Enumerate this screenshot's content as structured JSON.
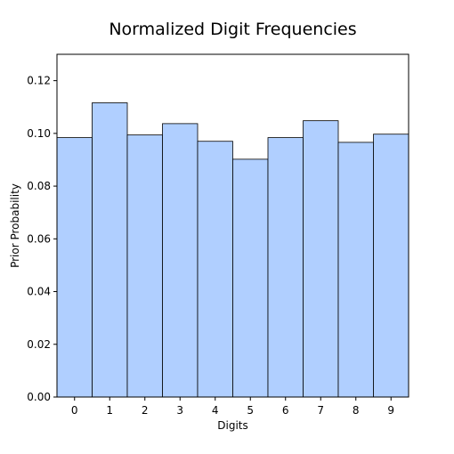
{
  "chart_data": {
    "type": "bar",
    "title": "Normalized Digit Frequencies",
    "xlabel": "Digits",
    "ylabel": "Prior Probability",
    "categories": [
      "0",
      "1",
      "2",
      "3",
      "4",
      "5",
      "6",
      "7",
      "8",
      "9"
    ],
    "values": [
      0.0984,
      0.1116,
      0.0994,
      0.1037,
      0.097,
      0.0902,
      0.0984,
      0.1048,
      0.0966,
      0.0997
    ],
    "ylim": [
      0,
      0.13
    ],
    "yticks": [
      "0.00",
      "0.02",
      "0.04",
      "0.06",
      "0.08",
      "0.10",
      "0.12"
    ],
    "bar_color": "#b0cfff",
    "edge_color": "#000000",
    "grid": false
  }
}
